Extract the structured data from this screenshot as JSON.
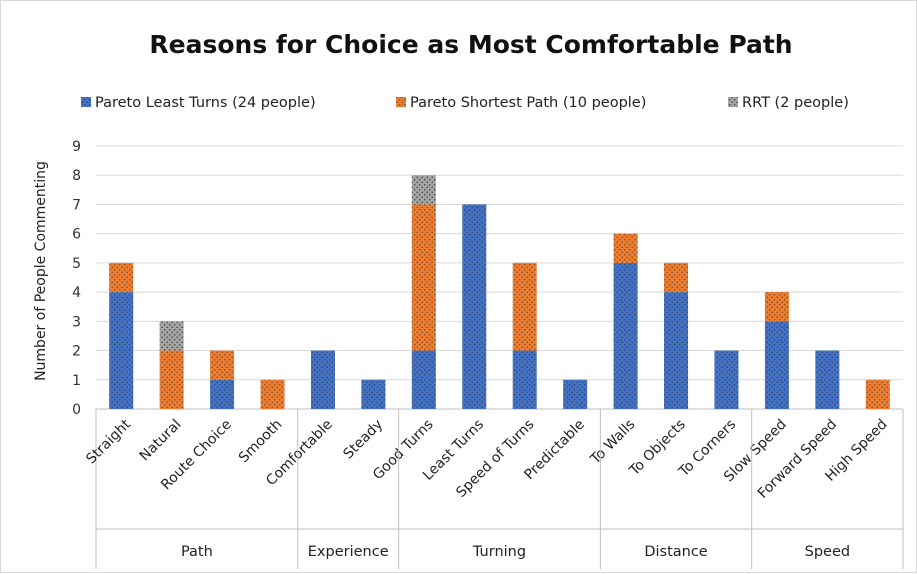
{
  "chart_data": {
    "type": "bar",
    "stacked": true,
    "title": "Reasons for Choice as Most Comfortable Path",
    "ylabel": "Number of People Commenting",
    "xlabel": "",
    "ylim": [
      0,
      9
    ],
    "yticks": [
      0,
      1,
      2,
      3,
      4,
      5,
      6,
      7,
      8,
      9
    ],
    "grid": true,
    "legend_position": "top",
    "categories": [
      "Straight",
      "Natural",
      "Route Choice",
      "Smooth",
      "Comfortable",
      "Steady",
      "Good Turns",
      "Least Turns",
      "Speed of Turns",
      "Predictable",
      "To Walls",
      "To Objects",
      "To Corners",
      "Slow Speed",
      "Forward Speed",
      "High Speed"
    ],
    "groups": [
      {
        "label": "Path",
        "span": 4
      },
      {
        "label": "Experience",
        "span": 2
      },
      {
        "label": "Turning",
        "span": 4
      },
      {
        "label": "Distance",
        "span": 3
      },
      {
        "label": "Speed",
        "span": 3
      }
    ],
    "series": [
      {
        "name": "Pareto Least Turns (24 people)",
        "color": "#4472C4",
        "values": [
          4,
          0,
          1,
          0,
          2,
          1,
          2,
          7,
          2,
          1,
          5,
          4,
          2,
          3,
          2,
          0
        ]
      },
      {
        "name": "Pareto Shortest Path (10 people)",
        "color": "#ED7D31",
        "values": [
          1,
          2,
          1,
          1,
          0,
          0,
          5,
          0,
          3,
          0,
          1,
          1,
          0,
          1,
          0,
          1
        ]
      },
      {
        "name": "RRT (2 people)",
        "color": "#A5A5A5",
        "values": [
          0,
          1,
          0,
          0,
          0,
          0,
          1,
          0,
          0,
          0,
          0,
          0,
          0,
          0,
          0,
          0
        ]
      }
    ]
  }
}
